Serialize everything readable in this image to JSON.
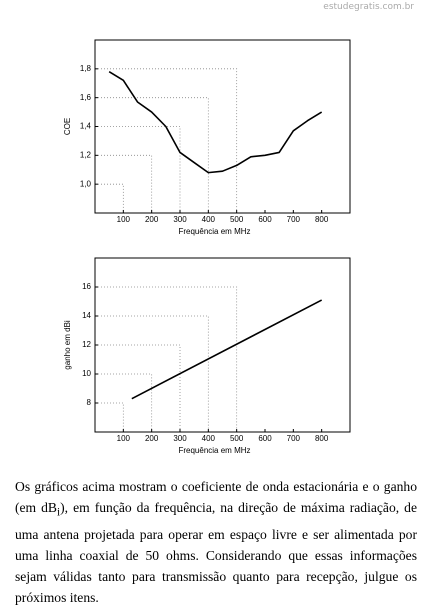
{
  "watermark": "estudegratis.com.br",
  "chart_data": [
    {
      "type": "line",
      "xlabel": "Frequência em MHz",
      "ylabel": "COE",
      "x": [
        50,
        100,
        150,
        200,
        250,
        300,
        350,
        400,
        450,
        500,
        550,
        600,
        650,
        700,
        750,
        800
      ],
      "values": [
        1.78,
        1.72,
        1.57,
        1.5,
        1.4,
        1.22,
        1.15,
        1.08,
        1.09,
        1.13,
        1.19,
        1.2,
        1.22,
        1.37,
        1.44,
        1.5
      ],
      "color": "#000000",
      "xlim": [
        0,
        900
      ],
      "xticks": [
        100,
        200,
        300,
        400,
        500,
        600,
        700,
        800
      ],
      "ylim": [
        0.8,
        2.0
      ],
      "yticks": [
        {
          "value": 1.0,
          "label": "1,0"
        },
        {
          "value": 1.2,
          "label": "1,2"
        },
        {
          "value": 1.4,
          "label": "1,4"
        },
        {
          "value": 1.6,
          "label": "1,6"
        },
        {
          "value": 1.8,
          "label": "1,8"
        }
      ],
      "guides": [
        [
          100,
          1.0
        ],
        [
          200,
          1.2
        ],
        [
          300,
          1.4
        ],
        [
          400,
          1.6
        ],
        [
          500,
          1.8
        ]
      ]
    },
    {
      "type": "line",
      "xlabel": "Frequência em MHz",
      "ylabel": "ganho em dBi",
      "x": [
        130,
        800
      ],
      "values": [
        8.3,
        15.1
      ],
      "color": "#000000",
      "xlim": [
        0,
        900
      ],
      "xticks": [
        100,
        200,
        300,
        400,
        500,
        600,
        700,
        800
      ],
      "ylim": [
        6,
        18
      ],
      "yticks": [
        8,
        10,
        12,
        14,
        16
      ],
      "guides": [
        [
          100,
          8
        ],
        [
          200,
          10
        ],
        [
          300,
          12
        ],
        [
          400,
          14
        ],
        [
          500,
          16
        ]
      ]
    }
  ],
  "text": {
    "before": "Os gráficos acima mostram o coeficiente de onda estacionária e o ganho (em dB",
    "sub": "i",
    "after": "), em função da frequência, na direção de máxima radiação, de uma antena projetada para operar em espaço livre e ser alimentada por uma linha coaxial de 50 ohms. Considerando que essas informações sejam válidas tanto para transmissão quanto para recepção, julgue os próximos itens."
  }
}
